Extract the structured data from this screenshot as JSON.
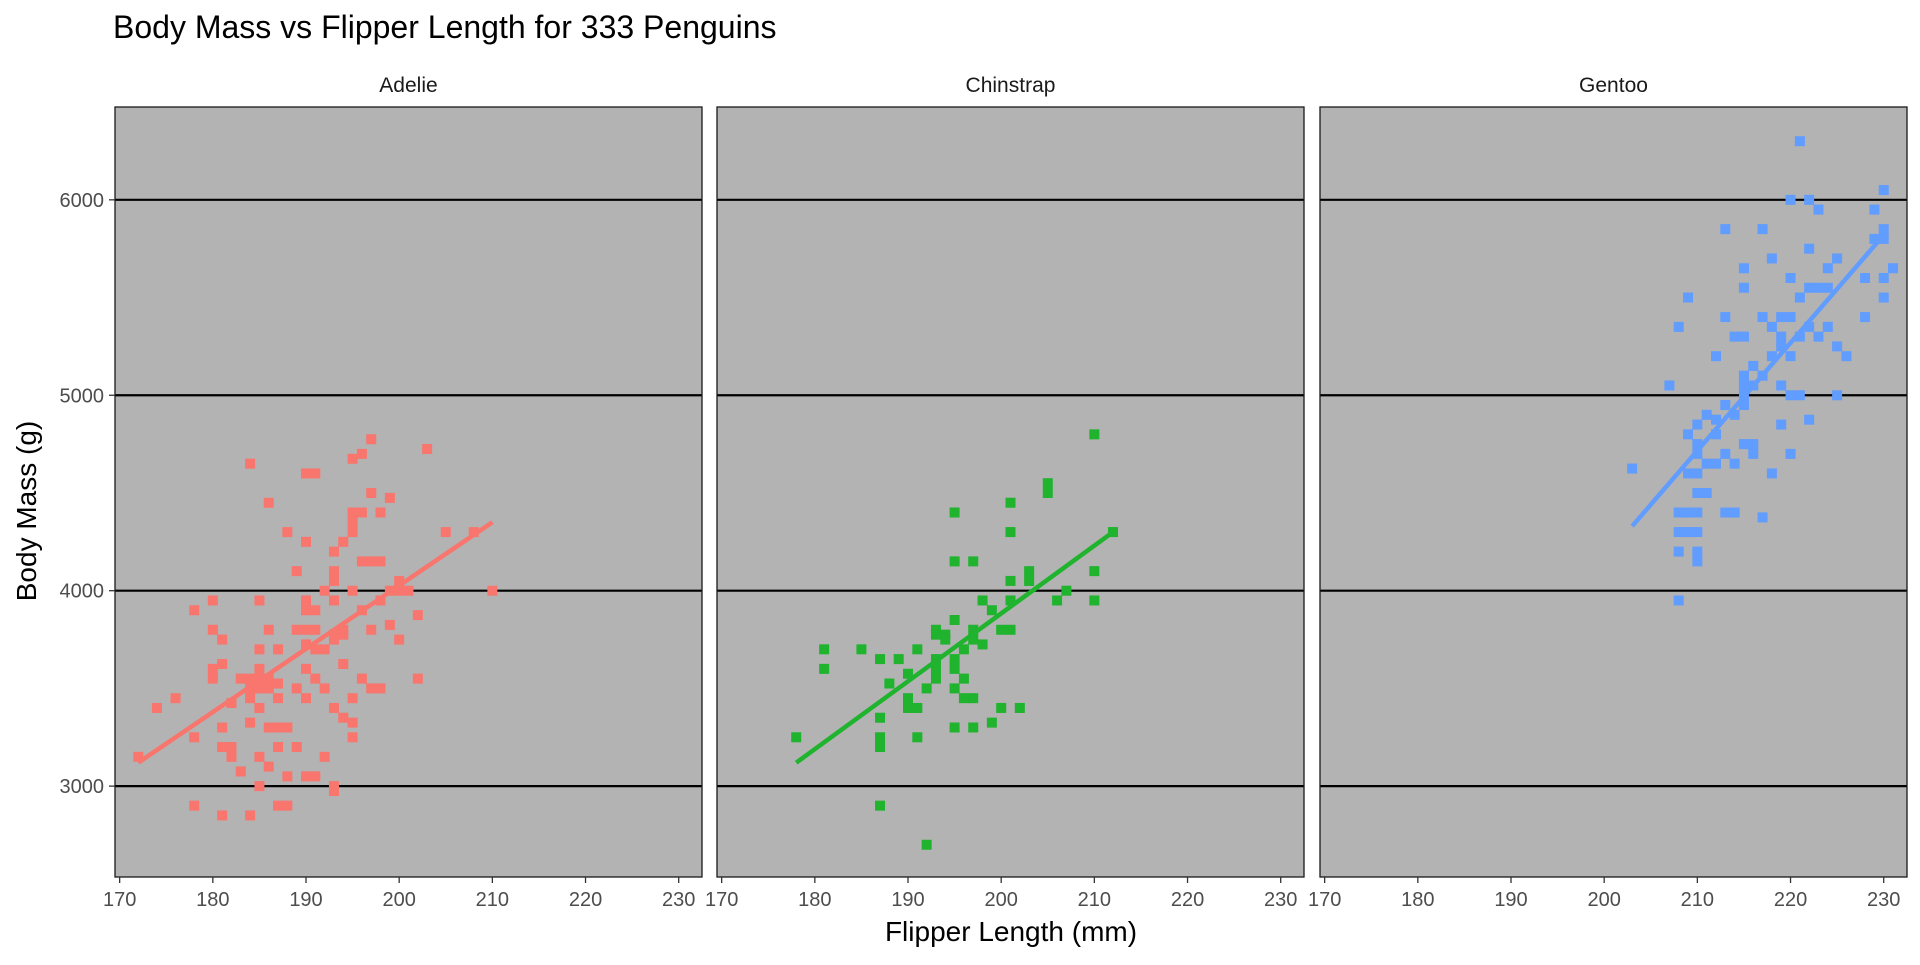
{
  "chart_data": {
    "type": "scatter",
    "title": "Body Mass vs Flipper Length for 333 Penguins",
    "xlabel": "Flipper Length (mm)",
    "ylabel": "Body Mass (g)",
    "xlim": [
      169.5,
      232.5
    ],
    "ylim": [
      2535,
      6475
    ],
    "x_ticks": [
      170,
      180,
      190,
      200,
      210,
      220,
      230
    ],
    "y_ticks": [
      3000,
      4000,
      5000,
      6000
    ],
    "grid": "horizontal-major",
    "legend": "none",
    "panel_background": "#b3b3b3",
    "panels": [
      {
        "name": "Adelie",
        "color": "#f8766d",
        "trend": {
          "x": [
            172,
            210
          ],
          "y": [
            3120,
            4350
          ]
        },
        "points": [
          [
            172,
            3150
          ],
          [
            174,
            3400
          ],
          [
            176,
            3450
          ],
          [
            178,
            3900
          ],
          [
            178,
            3250
          ],
          [
            178,
            2900
          ],
          [
            180,
            3950
          ],
          [
            180,
            3800
          ],
          [
            180,
            3600
          ],
          [
            180,
            3550
          ],
          [
            181,
            3750
          ],
          [
            181,
            3625
          ],
          [
            181,
            3300
          ],
          [
            181,
            3200
          ],
          [
            181,
            2850
          ],
          [
            182,
            3425
          ],
          [
            182,
            3200
          ],
          [
            182,
            3150
          ],
          [
            183,
            3075
          ],
          [
            183,
            3550
          ],
          [
            184,
            4650
          ],
          [
            184,
            3550
          ],
          [
            184,
            3500
          ],
          [
            184,
            3450
          ],
          [
            184,
            3325
          ],
          [
            184,
            2850
          ],
          [
            185,
            3950
          ],
          [
            185,
            3700
          ],
          [
            185,
            3600
          ],
          [
            185,
            3550
          ],
          [
            185,
            3500
          ],
          [
            185,
            3400
          ],
          [
            185,
            3150
          ],
          [
            185,
            3000
          ],
          [
            186,
            4450
          ],
          [
            186,
            3800
          ],
          [
            186,
            3550
          ],
          [
            186,
            3500
          ],
          [
            186,
            3300
          ],
          [
            186,
            3100
          ],
          [
            187,
            3700
          ],
          [
            187,
            3525
          ],
          [
            187,
            3450
          ],
          [
            187,
            3300
          ],
          [
            187,
            3200
          ],
          [
            187,
            2900
          ],
          [
            188,
            4300
          ],
          [
            188,
            3300
          ],
          [
            188,
            3050
          ],
          [
            188,
            2900
          ],
          [
            189,
            4100
          ],
          [
            189,
            3800
          ],
          [
            189,
            3500
          ],
          [
            189,
            3200
          ],
          [
            190,
            4600
          ],
          [
            190,
            4250
          ],
          [
            190,
            3950
          ],
          [
            190,
            3900
          ],
          [
            190,
            3800
          ],
          [
            190,
            3725
          ],
          [
            190,
            3600
          ],
          [
            190,
            3450
          ],
          [
            190,
            3050
          ],
          [
            191,
            4600
          ],
          [
            191,
            3900
          ],
          [
            191,
            3800
          ],
          [
            191,
            3700
          ],
          [
            191,
            3550
          ],
          [
            191,
            3050
          ],
          [
            192,
            4000
          ],
          [
            192,
            3700
          ],
          [
            192,
            3500
          ],
          [
            192,
            3150
          ],
          [
            193,
            4200
          ],
          [
            193,
            4100
          ],
          [
            193,
            4050
          ],
          [
            193,
            3950
          ],
          [
            193,
            3775
          ],
          [
            193,
            3750
          ],
          [
            193,
            3400
          ],
          [
            193,
            3000
          ],
          [
            193,
            2975
          ],
          [
            194,
            4250
          ],
          [
            194,
            3800
          ],
          [
            194,
            3775
          ],
          [
            194,
            3625
          ],
          [
            194,
            3350
          ],
          [
            195,
            4675
          ],
          [
            195,
            4400
          ],
          [
            195,
            4350
          ],
          [
            195,
            4300
          ],
          [
            195,
            4000
          ],
          [
            195,
            3450
          ],
          [
            195,
            3325
          ],
          [
            195,
            3250
          ],
          [
            196,
            4700
          ],
          [
            196,
            4400
          ],
          [
            196,
            4150
          ],
          [
            196,
            3900
          ],
          [
            196,
            3550
          ],
          [
            197,
            4775
          ],
          [
            197,
            4500
          ],
          [
            197,
            4150
          ],
          [
            197,
            3800
          ],
          [
            197,
            3500
          ],
          [
            198,
            4400
          ],
          [
            198,
            4150
          ],
          [
            198,
            3950
          ],
          [
            198,
            3500
          ],
          [
            199,
            3825
          ],
          [
            199,
            4000
          ],
          [
            199,
            4475
          ],
          [
            200,
            4050
          ],
          [
            200,
            3750
          ],
          [
            200,
            4000
          ],
          [
            201,
            4000
          ],
          [
            202,
            3875
          ],
          [
            202,
            3550
          ],
          [
            203,
            4725
          ],
          [
            205,
            4300
          ],
          [
            208,
            4300
          ],
          [
            210,
            4000
          ]
        ]
      },
      {
        "name": "Chinstrap",
        "color": "#1fb32e",
        "trend": {
          "x": [
            178,
            212
          ],
          "y": [
            3120,
            4300
          ]
        },
        "points": [
          [
            178,
            3250
          ],
          [
            181,
            3700
          ],
          [
            181,
            3600
          ],
          [
            185,
            3700
          ],
          [
            187,
            3650
          ],
          [
            187,
            3350
          ],
          [
            187,
            3250
          ],
          [
            187,
            3200
          ],
          [
            187,
            2900
          ],
          [
            188,
            3525
          ],
          [
            189,
            3650
          ],
          [
            190,
            3575
          ],
          [
            190,
            3450
          ],
          [
            190,
            3400
          ],
          [
            191,
            3700
          ],
          [
            191,
            3400
          ],
          [
            191,
            3250
          ],
          [
            192,
            2700
          ],
          [
            192,
            3500
          ],
          [
            193,
            3800
          ],
          [
            193,
            3775
          ],
          [
            193,
            3650
          ],
          [
            193,
            3600
          ],
          [
            193,
            3550
          ],
          [
            194,
            3775
          ],
          [
            194,
            3750
          ],
          [
            195,
            4400
          ],
          [
            195,
            4150
          ],
          [
            195,
            3850
          ],
          [
            195,
            3650
          ],
          [
            195,
            3600
          ],
          [
            195,
            3500
          ],
          [
            195,
            3300
          ],
          [
            196,
            3700
          ],
          [
            196,
            3550
          ],
          [
            196,
            3450
          ],
          [
            197,
            4150
          ],
          [
            197,
            3800
          ],
          [
            197,
            3750
          ],
          [
            197,
            3450
          ],
          [
            197,
            3300
          ],
          [
            198,
            3725
          ],
          [
            198,
            3950
          ],
          [
            199,
            3900
          ],
          [
            199,
            3325
          ],
          [
            200,
            3800
          ],
          [
            200,
            3400
          ],
          [
            201,
            4450
          ],
          [
            201,
            4300
          ],
          [
            201,
            4050
          ],
          [
            201,
            3950
          ],
          [
            201,
            3800
          ],
          [
            202,
            3400
          ],
          [
            203,
            4100
          ],
          [
            203,
            4050
          ],
          [
            205,
            4550
          ],
          [
            205,
            4500
          ],
          [
            206,
            3950
          ],
          [
            207,
            4000
          ],
          [
            210,
            4800
          ],
          [
            210,
            4100
          ],
          [
            210,
            3950
          ],
          [
            212,
            4300
          ]
        ]
      },
      {
        "name": "Gentoo",
        "color": "#619cff",
        "trend": {
          "x": [
            203,
            230
          ],
          "y": [
            4330,
            5820
          ]
        },
        "points": [
          [
            203,
            4625
          ],
          [
            207,
            5050
          ],
          [
            208,
            5350
          ],
          [
            208,
            4300
          ],
          [
            208,
            4200
          ],
          [
            208,
            3950
          ],
          [
            208,
            4400
          ],
          [
            209,
            5500
          ],
          [
            209,
            4800
          ],
          [
            209,
            4600
          ],
          [
            209,
            4400
          ],
          [
            209,
            4300
          ],
          [
            210,
            4850
          ],
          [
            210,
            4750
          ],
          [
            210,
            4700
          ],
          [
            210,
            4600
          ],
          [
            210,
            4500
          ],
          [
            210,
            4400
          ],
          [
            210,
            4200
          ],
          [
            210,
            4150
          ],
          [
            210,
            4300
          ],
          [
            211,
            4900
          ],
          [
            211,
            4650
          ],
          [
            211,
            4500
          ],
          [
            212,
            5200
          ],
          [
            212,
            4875
          ],
          [
            212,
            4800
          ],
          [
            212,
            4650
          ],
          [
            213,
            5850
          ],
          [
            213,
            5400
          ],
          [
            213,
            4950
          ],
          [
            213,
            4700
          ],
          [
            213,
            4400
          ],
          [
            214,
            5300
          ],
          [
            214,
            4900
          ],
          [
            214,
            4650
          ],
          [
            214,
            4400
          ],
          [
            215,
            5650
          ],
          [
            215,
            5550
          ],
          [
            215,
            5300
          ],
          [
            215,
            5100
          ],
          [
            215,
            5050
          ],
          [
            215,
            5000
          ],
          [
            215,
            4950
          ],
          [
            215,
            4750
          ],
          [
            216,
            5150
          ],
          [
            216,
            5050
          ],
          [
            216,
            4750
          ],
          [
            216,
            4700
          ],
          [
            217,
            5850
          ],
          [
            217,
            5400
          ],
          [
            217,
            5100
          ],
          [
            217,
            4375
          ],
          [
            218,
            5700
          ],
          [
            218,
            5350
          ],
          [
            218,
            5200
          ],
          [
            218,
            4600
          ],
          [
            219,
            5400
          ],
          [
            219,
            5300
          ],
          [
            219,
            5250
          ],
          [
            219,
            5050
          ],
          [
            219,
            4850
          ],
          [
            220,
            6000
          ],
          [
            220,
            5600
          ],
          [
            220,
            5400
          ],
          [
            220,
            5200
          ],
          [
            220,
            5000
          ],
          [
            220,
            4700
          ],
          [
            221,
            6300
          ],
          [
            221,
            5500
          ],
          [
            221,
            5300
          ],
          [
            221,
            5000
          ],
          [
            222,
            6000
          ],
          [
            222,
            5750
          ],
          [
            222,
            5550
          ],
          [
            222,
            5350
          ],
          [
            222,
            4875
          ],
          [
            223,
            5950
          ],
          [
            223,
            5550
          ],
          [
            223,
            5300
          ],
          [
            224,
            5650
          ],
          [
            224,
            5550
          ],
          [
            224,
            5350
          ],
          [
            225,
            5700
          ],
          [
            225,
            5250
          ],
          [
            225,
            5000
          ],
          [
            226,
            5200
          ],
          [
            228,
            5600
          ],
          [
            228,
            5400
          ],
          [
            229,
            5950
          ],
          [
            229,
            5800
          ],
          [
            230,
            6050
          ],
          [
            230,
            5850
          ],
          [
            230,
            5800
          ],
          [
            230,
            5600
          ],
          [
            230,
            5500
          ],
          [
            231,
            5650
          ]
        ]
      }
    ]
  }
}
